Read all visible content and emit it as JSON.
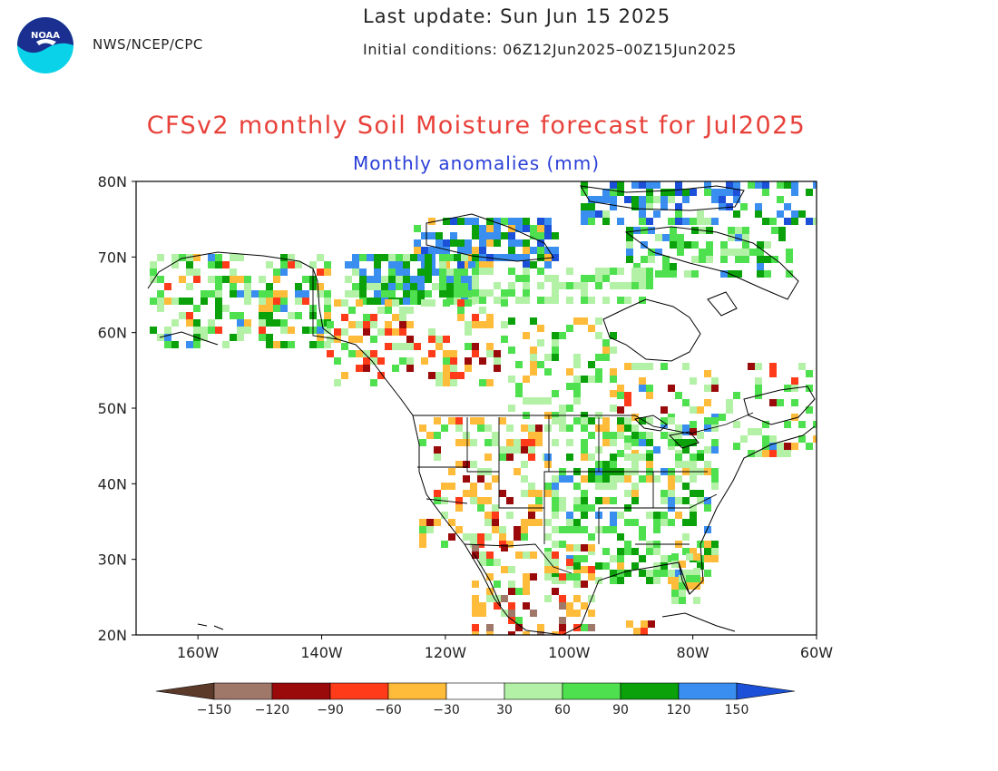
{
  "header": {
    "org": "NWS/NCEP/CPC",
    "last_update": "Last update: Sun Jun 15 2025",
    "initial_conditions": "Initial conditions: 06Z12Jun2025–00Z15Jun2025",
    "logo_text": "NOAA"
  },
  "title": "CFSv2 monthly Soil Moisture forecast for Jul2025",
  "subtitle": "Monthly anomalies (mm)",
  "colors": {
    "title": "#e8413a",
    "subtitle": "#2a3fd8"
  },
  "map": {
    "projection": "lat-lon",
    "lon_range": [
      -170,
      -60
    ],
    "lat_range": [
      20,
      80
    ],
    "lat_ticks": [
      "80N",
      "70N",
      "60N",
      "50N",
      "40N",
      "30N",
      "20N"
    ],
    "lon_ticks": [
      "160W",
      "140W",
      "120W",
      "100W",
      "80W",
      "60W"
    ]
  },
  "colorbar": {
    "labels": [
      "-150",
      "-120",
      "-90",
      "-60",
      "-30",
      "30",
      "60",
      "90",
      "120",
      "150"
    ],
    "colors": [
      "#5c3a2a",
      "#a0786a",
      "#9a0a0a",
      "#ff3b1a",
      "#ffbb3a",
      "#ffffff",
      "#b3f2a6",
      "#4ee04e",
      "#0aa10a",
      "#3a8ef0",
      "#1c50d8"
    ]
  }
}
